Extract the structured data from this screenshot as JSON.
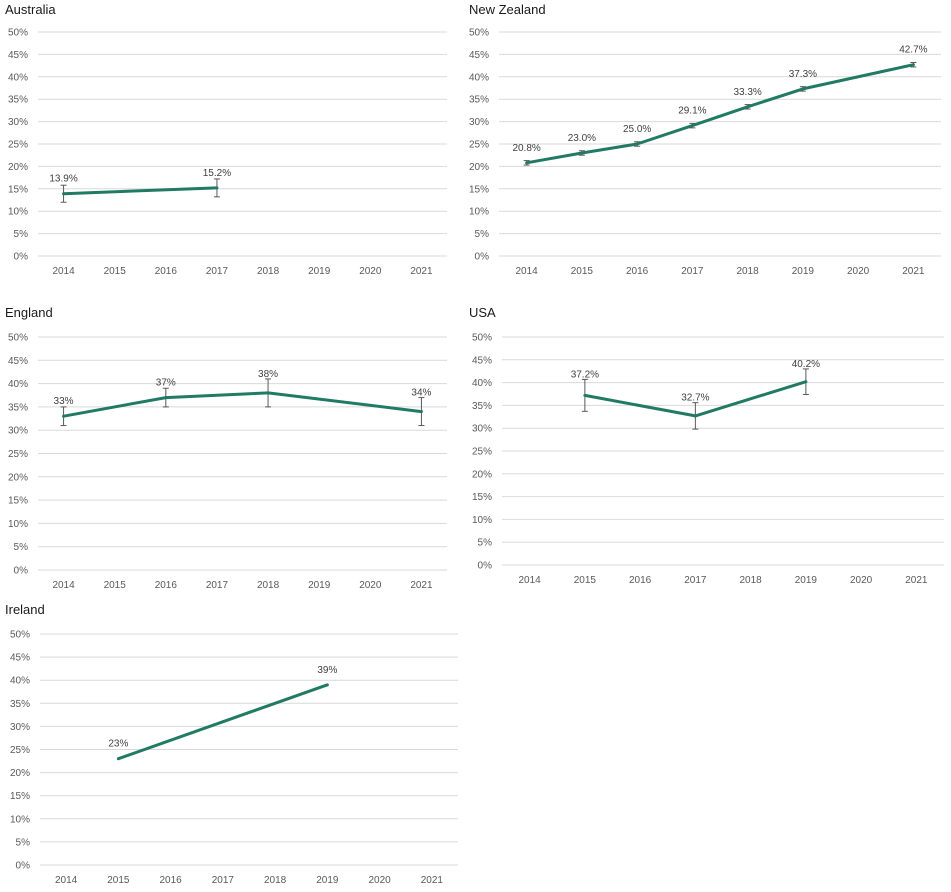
{
  "chart_data": [
    {
      "type": "line",
      "title": "Australia",
      "categories": [
        "2014",
        "2015",
        "2016",
        "2017",
        "2018",
        "2019",
        "2020",
        "2021"
      ],
      "y_tick_labels": [
        "0%",
        "5%",
        "10%",
        "15%",
        "20%",
        "25%",
        "30%",
        "35%",
        "40%",
        "45%",
        "50%"
      ],
      "ylim": [
        0,
        50
      ],
      "grid": true,
      "line_color": "#217a64",
      "points": [
        {
          "x": "2014",
          "y": 13.9,
          "label": "13.9%",
          "err_low": 12.0,
          "err_high": 15.8
        },
        {
          "x": "2017",
          "y": 15.2,
          "label": "15.2%",
          "err_low": 13.2,
          "err_high": 17.2
        }
      ]
    },
    {
      "type": "line",
      "title": "New Zealand",
      "categories": [
        "2014",
        "2015",
        "2016",
        "2017",
        "2018",
        "2019",
        "2020",
        "2021"
      ],
      "y_tick_labels": [
        "0%",
        "5%",
        "10%",
        "15%",
        "20%",
        "25%",
        "30%",
        "35%",
        "40%",
        "45%",
        "50%"
      ],
      "ylim": [
        0,
        50
      ],
      "grid": true,
      "line_color": "#217a64",
      "points": [
        {
          "x": "2014",
          "y": 20.8,
          "label": "20.8%",
          "err_low": 20.3,
          "err_high": 21.3
        },
        {
          "x": "2015",
          "y": 23.0,
          "label": "23.0%",
          "err_low": 22.5,
          "err_high": 23.5
        },
        {
          "x": "2016",
          "y": 25.0,
          "label": "25.0%",
          "err_low": 24.5,
          "err_high": 25.5
        },
        {
          "x": "2017",
          "y": 29.1,
          "label": "29.1%",
          "err_low": 28.6,
          "err_high": 29.6
        },
        {
          "x": "2018",
          "y": 33.3,
          "label": "33.3%",
          "err_low": 32.8,
          "err_high": 33.8
        },
        {
          "x": "2019",
          "y": 37.3,
          "label": "37.3%",
          "err_low": 36.8,
          "err_high": 37.8
        },
        {
          "x": "2021",
          "y": 42.7,
          "label": "42.7%",
          "err_low": 42.2,
          "err_high": 43.2
        }
      ]
    },
    {
      "type": "line",
      "title": "England",
      "categories": [
        "2014",
        "2015",
        "2016",
        "2017",
        "2018",
        "2019",
        "2020",
        "2021"
      ],
      "y_tick_labels": [
        "0%",
        "5%",
        "10%",
        "15%",
        "20%",
        "25%",
        "30%",
        "35%",
        "40%",
        "45%",
        "50%"
      ],
      "ylim": [
        0,
        50
      ],
      "grid": true,
      "line_color": "#217a64",
      "points": [
        {
          "x": "2014",
          "y": 33,
          "label": "33%",
          "err_low": 31,
          "err_high": 35
        },
        {
          "x": "2016",
          "y": 37,
          "label": "37%",
          "err_low": 35,
          "err_high": 39
        },
        {
          "x": "2018",
          "y": 38,
          "label": "38%",
          "err_low": 35,
          "err_high": 41
        },
        {
          "x": "2021",
          "y": 34,
          "label": "34%",
          "err_low": 31,
          "err_high": 37
        }
      ]
    },
    {
      "type": "line",
      "title": "USA",
      "categories": [
        "2014",
        "2015",
        "2016",
        "2017",
        "2018",
        "2019",
        "2020",
        "2021"
      ],
      "y_tick_labels": [
        "0%",
        "5%",
        "10%",
        "15%",
        "20%",
        "25%",
        "30%",
        "35%",
        "40%",
        "45%",
        "50%"
      ],
      "ylim": [
        0,
        50
      ],
      "grid": true,
      "line_color": "#217a64",
      "points": [
        {
          "x": "2015",
          "y": 37.2,
          "label": "37.2%",
          "err_low": 33.7,
          "err_high": 40.7
        },
        {
          "x": "2017",
          "y": 32.7,
          "label": "32.7%",
          "err_low": 29.8,
          "err_high": 35.6
        },
        {
          "x": "2019",
          "y": 40.2,
          "label": "40.2%",
          "err_low": 37.4,
          "err_high": 43.0
        }
      ]
    },
    {
      "type": "line",
      "title": "Ireland",
      "categories": [
        "2014",
        "2015",
        "2016",
        "2017",
        "2018",
        "2019",
        "2020",
        "2021"
      ],
      "y_tick_labels": [
        "0%",
        "5%",
        "10%",
        "15%",
        "20%",
        "25%",
        "30%",
        "35%",
        "40%",
        "45%",
        "50%"
      ],
      "ylim": [
        0,
        50
      ],
      "grid": true,
      "line_color": "#217a64",
      "points": [
        {
          "x": "2015",
          "y": 23,
          "label": "23%"
        },
        {
          "x": "2019",
          "y": 39,
          "label": "39%"
        }
      ]
    }
  ]
}
